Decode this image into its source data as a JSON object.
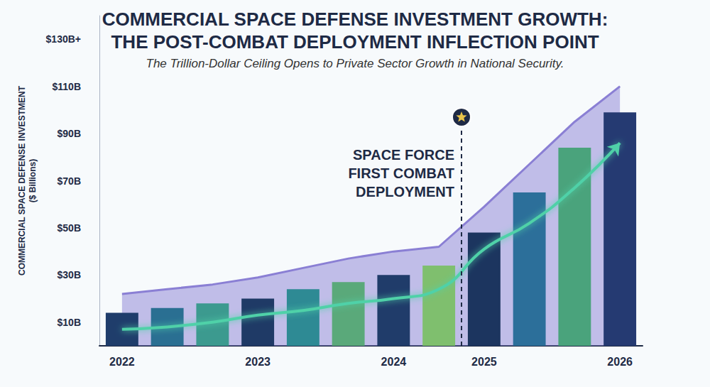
{
  "chart_data": {
    "type": "bar",
    "title": "COMMERCIAL SPACE DEFENSE INVESTMENT GROWTH: THE POST-COMBAT DEPLOYMENT INFLECTION POINT",
    "subtitle": "The Trillion-Dollar Ceiling Opens to Private Sector Growth in National Security.",
    "y_label": "COMMERCIAL SPACE DEFENSE INVESTMENT ($ Billions)",
    "categories": [
      "2022",
      null,
      null,
      "2023",
      null,
      null,
      "2024",
      null,
      "2025",
      null,
      null,
      "2026"
    ],
    "series": [
      {
        "type": "area",
        "color": "#8a7fd4",
        "values": [
          22,
          24,
          26,
          29,
          33,
          37,
          40,
          42,
          59,
          77,
          95,
          110
        ]
      },
      {
        "type": "bar",
        "colors": [
          "#1f3d6b",
          "#2a6f92",
          "#3c9a8f",
          "#1f3a66",
          "#2e8a94",
          "#5aa97a",
          "#203c6a",
          "#7fbf6e",
          "#1c355f",
          "#2c6f9a",
          "#4aa37c",
          "#253a72"
        ],
        "values": [
          14,
          16,
          18,
          20,
          24,
          27,
          30,
          34,
          48,
          65,
          84,
          99
        ]
      },
      {
        "type": "line",
        "color": "#4fd1a8",
        "values": [
          7,
          8,
          10,
          13,
          15,
          18,
          20,
          24,
          41,
          52,
          67,
          86
        ]
      }
    ],
    "ylim": [
      0,
      140
    ],
    "yticks": [
      {
        "value": 10,
        "label": "$10B"
      },
      {
        "value": 30,
        "label": "$30B"
      },
      {
        "value": 50,
        "label": "$50B"
      },
      {
        "value": 70,
        "label": "$70B"
      },
      {
        "value": 90,
        "label": "$90B"
      },
      {
        "value": 110,
        "label": "$110B"
      },
      {
        "value": 130,
        "label": "$130B+"
      }
    ],
    "grid": false,
    "annotations": [
      {
        "text": "SPACE FORCE FIRST COMBAT DEPLOYMENT",
        "before": "2025"
      }
    ]
  }
}
